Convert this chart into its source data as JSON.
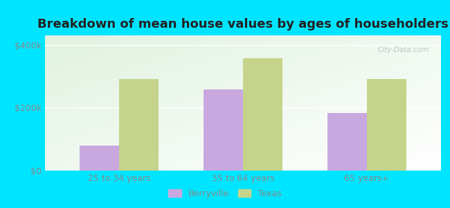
{
  "title": "Breakdown of mean house values by ages of householders",
  "categories": [
    "25 to 34 years",
    "35 to 64 years",
    "65 years+"
  ],
  "berryville": [
    80000,
    258000,
    182000
  ],
  "texas": [
    290000,
    358000,
    290000
  ],
  "berryville_color": "#c9a8e0",
  "texas_color": "#c5d48a",
  "background_outer": "#00e5ff",
  "yticks": [
    0,
    200000,
    400000
  ],
  "ytick_labels": [
    "$0",
    "$200k",
    "$400k"
  ],
  "ylim": [
    0,
    430000
  ],
  "legend_berryville": "Berryville",
  "legend_texas": "Texas",
  "bar_width": 0.32,
  "title_fontsize": 13,
  "tick_fontsize": 9,
  "legend_fontsize": 9,
  "watermark": "City-Data.com"
}
